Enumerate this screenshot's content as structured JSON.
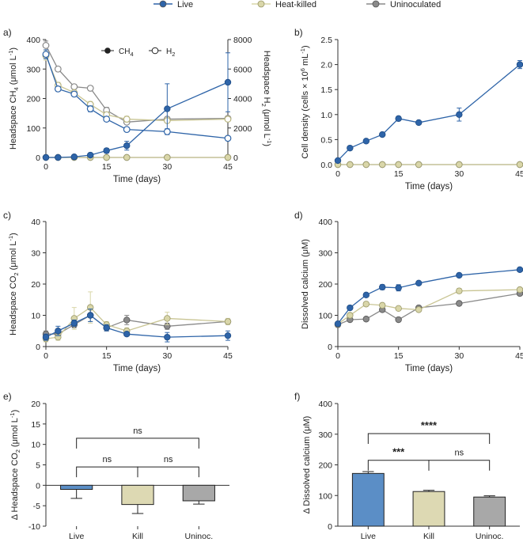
{
  "legend": {
    "items": [
      {
        "label": "Live",
        "color": "#2e64a8"
      },
      {
        "label": "Heat-killed",
        "color": "#d9d6a9"
      },
      {
        "label": "Uninoculated",
        "color": "#8a8a8a"
      }
    ]
  },
  "colors": {
    "live": "#2e64a8",
    "killed": "#d9d6a9",
    "unin": "#8a8a8a",
    "live_bar": "#5b8ec6",
    "kill_bar": "#ddd9b3",
    "unin_bar": "#a8a8a8"
  },
  "chart_data": [
    {
      "panel": "a)",
      "type": "line",
      "xlabel": "Time (days)",
      "ylabel": "Headspace CH4 (μmol L-1)",
      "y2label": "Headspace H2 (μmol L-1)",
      "xlim": [
        0,
        45
      ],
      "ylim": [
        0,
        400
      ],
      "y2lim": [
        0,
        8000
      ],
      "xticks": [
        "0",
        "15",
        "30",
        "45"
      ],
      "yticks": [
        "0",
        "100",
        "200",
        "300",
        "400"
      ],
      "y2ticks": [
        "0",
        "2000",
        "4000",
        "6000",
        "8000"
      ],
      "x": [
        0,
        3,
        7,
        11,
        15,
        20,
        30,
        45
      ],
      "inner_legend": [
        "CH4",
        "H2"
      ],
      "series": [
        {
          "name": "Live CH4",
          "axis": "left",
          "marker": "filled",
          "color": "live",
          "values": [
            0,
            0,
            2,
            8,
            23,
            40,
            165,
            255
          ],
          "err": [
            0,
            0,
            2,
            4,
            8,
            15,
            85,
            100
          ]
        },
        {
          "name": "Heat-killed CH4",
          "axis": "left",
          "marker": "filled",
          "color": "killed",
          "values": [
            0,
            0,
            0,
            0,
            0,
            0,
            0,
            0
          ],
          "err": [
            0,
            0,
            0,
            0,
            0,
            0,
            0,
            0
          ]
        },
        {
          "name": "Uninoculated CH4",
          "axis": "left",
          "marker": "filled",
          "color": "unin",
          "values": [
            0,
            0,
            0,
            0,
            0,
            0,
            0,
            0
          ],
          "err": [
            0,
            0,
            0,
            0,
            0,
            0,
            0,
            0
          ]
        },
        {
          "name": "Live H2",
          "axis": "right",
          "marker": "open",
          "color": "live",
          "values": [
            7000,
            4650,
            4300,
            3300,
            2600,
            1900,
            1750,
            1300
          ],
          "err": [
            300,
            150,
            150,
            200,
            150,
            150,
            200,
            150
          ]
        },
        {
          "name": "Heat-killed H2",
          "axis": "right",
          "marker": "open",
          "color": "killed",
          "values": [
            6900,
            4900,
            4400,
            3600,
            2900,
            2600,
            2500,
            2600
          ],
          "err": [
            300,
            200,
            150,
            200,
            150,
            200,
            150,
            150
          ]
        },
        {
          "name": "Uninoculated H2",
          "axis": "right",
          "marker": "open",
          "color": "unin",
          "values": [
            7600,
            6000,
            4800,
            4700,
            3200,
            2400,
            2600,
            2650
          ],
          "err": [
            300,
            150,
            150,
            150,
            200,
            150,
            150,
            150
          ]
        }
      ]
    },
    {
      "panel": "b)",
      "type": "line",
      "xlabel": "Time (days)",
      "ylabel": "Cell density (cells × 106 mL-1)",
      "xlim": [
        0,
        45
      ],
      "ylim": [
        0,
        2.5
      ],
      "xticks": [
        "0",
        "15",
        "30",
        "45"
      ],
      "yticks": [
        "0.0",
        "0.5",
        "1.0",
        "1.5",
        "2.0",
        "2.5"
      ],
      "x": [
        0,
        3,
        7,
        11,
        15,
        20,
        30,
        45
      ],
      "series": [
        {
          "name": "Live",
          "color": "live",
          "values": [
            0.08,
            0.33,
            0.47,
            0.6,
            0.92,
            0.84,
            1.0,
            2.0
          ],
          "err": [
            0,
            0.02,
            0.02,
            0.02,
            0.02,
            0.02,
            0.13,
            0.08
          ]
        },
        {
          "name": "Heat-killed",
          "color": "killed",
          "values": [
            0,
            0,
            0,
            0,
            0,
            0,
            0,
            0
          ],
          "err": [
            0,
            0,
            0,
            0,
            0,
            0,
            0,
            0
          ]
        },
        {
          "name": "Uninoculated",
          "color": "unin",
          "values": [
            0,
            0,
            0,
            0,
            0,
            0,
            0,
            0
          ],
          "err": [
            0,
            0,
            0,
            0,
            0,
            0,
            0,
            0
          ]
        }
      ]
    },
    {
      "panel": "c)",
      "type": "line",
      "xlabel": "Time (days)",
      "ylabel": "Headspace CO2 (μmol L-1)",
      "xlim": [
        0,
        45
      ],
      "ylim": [
        0,
        40
      ],
      "xticks": [
        "0",
        "15",
        "30",
        "45"
      ],
      "yticks": [
        "0",
        "10",
        "20",
        "30",
        "40"
      ],
      "x": [
        0,
        3,
        7,
        11,
        15,
        20,
        30,
        45
      ],
      "series": [
        {
          "name": "Live",
          "color": "live",
          "values": [
            3,
            5,
            7.5,
            10,
            6,
            4,
            3,
            3.5
          ],
          "err": [
            1,
            1.5,
            1,
            2,
            1,
            0.5,
            1.5,
            1.5
          ]
        },
        {
          "name": "Heat-killed",
          "color": "killed",
          "values": [
            2.5,
            3,
            9,
            12.5,
            7,
            5,
            9,
            8
          ],
          "err": [
            1,
            1,
            3.5,
            5,
            1,
            1,
            2,
            1
          ]
        },
        {
          "name": "Uninoculated",
          "color": "unin",
          "values": [
            4,
            4,
            7,
            10,
            6,
            8.5,
            6.5,
            8
          ],
          "err": [
            1,
            1,
            1,
            2,
            1,
            1.5,
            1,
            1
          ]
        }
      ]
    },
    {
      "panel": "d)",
      "type": "line",
      "xlabel": "Time (days)",
      "ylabel": "Dissolved calcium (μM)",
      "xlim": [
        0,
        45
      ],
      "ylim": [
        0,
        400
      ],
      "xticks": [
        "0",
        "15",
        "30",
        "45"
      ],
      "yticks": [
        "0",
        "100",
        "200",
        "300",
        "400"
      ],
      "x": [
        0,
        3,
        7,
        11,
        15,
        20,
        30,
        45
      ],
      "series": [
        {
          "name": "Live",
          "color": "live",
          "values": [
            73,
            124,
            165,
            190,
            188,
            203,
            228,
            246
          ],
          "err": [
            4,
            4,
            4,
            8,
            10,
            4,
            4,
            4
          ]
        },
        {
          "name": "Heat-killed",
          "color": "killed",
          "values": [
            72,
            100,
            136,
            132,
            122,
            118,
            178,
            182
          ],
          "err": [
            3,
            3,
            4,
            4,
            4,
            4,
            8,
            4
          ]
        },
        {
          "name": "Uninoculated",
          "color": "unin",
          "values": [
            70,
            86,
            88,
            118,
            86,
            124,
            138,
            170
          ],
          "err": [
            3,
            3,
            3,
            4,
            4,
            4,
            4,
            4
          ]
        }
      ]
    },
    {
      "panel": "e)",
      "type": "bar",
      "ylabel": "Δ Headspace CO2 (μmol L-1)",
      "ylim": [
        -10,
        20
      ],
      "yticks": [
        "-10",
        "-5",
        "0",
        "5",
        "10",
        "15",
        "20"
      ],
      "categories": [
        "Live",
        "Kill",
        "Uninoc."
      ],
      "values": [
        -1,
        -4.7,
        -3.8
      ],
      "err": [
        2.2,
        2.2,
        0.8
      ],
      "sig": [
        {
          "from": 0,
          "to": 1,
          "label": "ns",
          "y": 4.5
        },
        {
          "from": 1,
          "to": 2,
          "label": "ns",
          "y": 4.5
        },
        {
          "from": 0,
          "to": 2,
          "label": "ns",
          "y": 11.5
        }
      ]
    },
    {
      "panel": "f)",
      "type": "bar",
      "ylabel": "Δ Dissolved calcium (μM)",
      "ylim": [
        0,
        400
      ],
      "yticks": [
        "0",
        "100",
        "200",
        "300",
        "400"
      ],
      "categories": [
        "Live",
        "Kill",
        "Uninoc."
      ],
      "values": [
        172,
        113,
        95
      ],
      "err": [
        6,
        4,
        4
      ],
      "sig": [
        {
          "from": 0,
          "to": 1,
          "label": "***",
          "y": 215
        },
        {
          "from": 1,
          "to": 2,
          "label": "ns",
          "y": 215
        },
        {
          "from": 0,
          "to": 2,
          "label": "****",
          "y": 302
        }
      ]
    }
  ]
}
